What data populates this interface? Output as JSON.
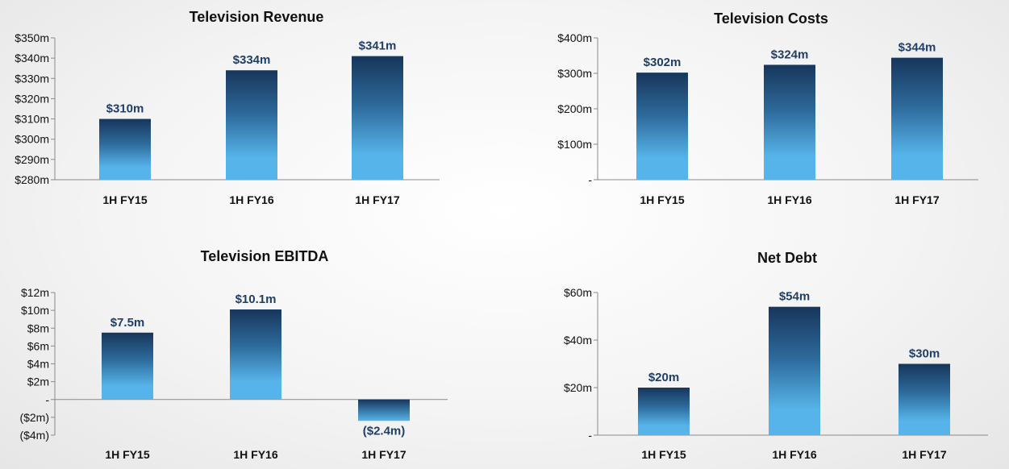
{
  "chart_data": [
    {
      "type": "bar",
      "title": "Television Revenue",
      "categories": [
        "1H FY15",
        "1H FY16",
        "1H FY17"
      ],
      "values": [
        310,
        334,
        341
      ],
      "data_labels": [
        "$310m",
        "$334m",
        "$341m"
      ],
      "ylim": [
        280,
        350
      ],
      "yticks": [
        280,
        290,
        300,
        310,
        320,
        330,
        340,
        350
      ],
      "ytick_labels": [
        "$280m",
        "$290m",
        "$300m",
        "$310m",
        "$320m",
        "$330m",
        "$340m",
        "$350m"
      ],
      "grid": false,
      "legend": "none"
    },
    {
      "type": "bar",
      "title": "Television Costs",
      "categories": [
        "1H FY15",
        "1H FY16",
        "1H FY17"
      ],
      "values": [
        302,
        324,
        344
      ],
      "data_labels": [
        "$302m",
        "$324m",
        "$344m"
      ],
      "ylim": [
        0,
        400
      ],
      "yticks": [
        0,
        100,
        200,
        300,
        400
      ],
      "ytick_labels": [
        "-",
        "$100m",
        "$200m",
        "$300m",
        "$400m"
      ],
      "grid": false,
      "legend": "none"
    },
    {
      "type": "bar",
      "title": "Television EBITDA",
      "categories": [
        "1H FY15",
        "1H FY16",
        "1H FY17"
      ],
      "values": [
        7.5,
        10.1,
        -2.4
      ],
      "data_labels": [
        "$7.5m",
        "$10.1m",
        "($2.4m)"
      ],
      "ylim": [
        -4,
        12
      ],
      "yticks": [
        -4,
        -2,
        0,
        2,
        4,
        6,
        8,
        10,
        12
      ],
      "ytick_labels": [
        "($4m)",
        "($2m)",
        "-",
        "$2m",
        "$4m",
        "$6m",
        "$8m",
        "$10m",
        "$12m"
      ],
      "grid": false,
      "legend": "none"
    },
    {
      "type": "bar",
      "title": "Net Debt",
      "categories": [
        "1H FY15",
        "1H FY16",
        "1H FY17"
      ],
      "values": [
        20,
        54,
        30
      ],
      "data_labels": [
        "$20m",
        "$54m",
        "$30m"
      ],
      "ylim": [
        0,
        60
      ],
      "yticks": [
        0,
        20,
        40,
        60
      ],
      "ytick_labels": [
        "-",
        "$20m",
        "$40m",
        "$60m"
      ],
      "grid": false,
      "legend": "none"
    }
  ],
  "colors": {
    "bar_top": "#17365b",
    "bar_bottom": "#56b4ea",
    "data_label": "#1f3f66",
    "axis": "#8a8a8a"
  }
}
